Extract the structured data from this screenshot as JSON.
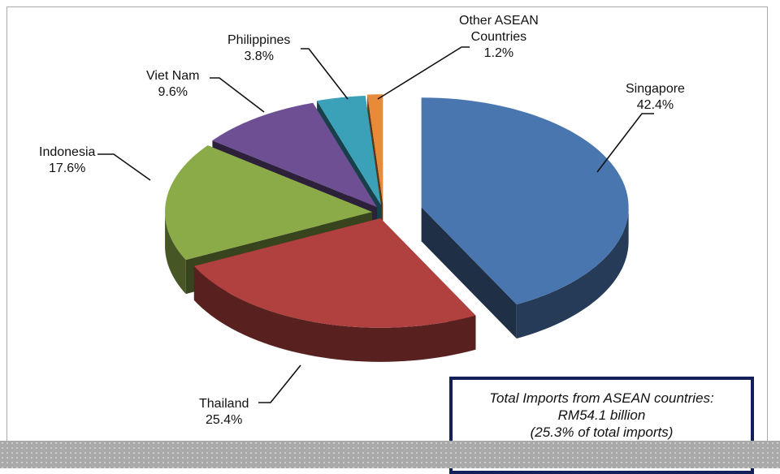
{
  "chart_data": {
    "type": "pie",
    "style": "3d-exploded",
    "categories": [
      "Singapore",
      "Thailand",
      "Indonesia",
      "Viet Nam",
      "Philippines",
      "Other ASEAN Countries"
    ],
    "values": [
      42.4,
      25.4,
      17.6,
      9.6,
      3.8,
      1.2
    ],
    "labels": [
      {
        "name": "Singapore",
        "pct": "42.4%"
      },
      {
        "name": "Thailand",
        "pct": "25.4%"
      },
      {
        "name": "Indonesia",
        "pct": "17.6%"
      },
      {
        "name": "Viet Nam",
        "pct": "9.6%"
      },
      {
        "name": "Philippines",
        "pct": "3.8%"
      },
      {
        "name": "Other ASEAN\nCountries",
        "pct": "1.2%"
      }
    ],
    "colors": [
      "#4a76b0",
      "#b0413e",
      "#8bab48",
      "#6e4f94",
      "#3aa1b8",
      "#e78a3a"
    ],
    "annotation": {
      "line1": "Total Imports from ASEAN countries:",
      "line2": "RM54.1 billion",
      "line3": "(25.3% of total imports)"
    }
  }
}
